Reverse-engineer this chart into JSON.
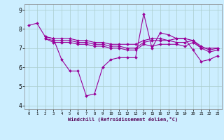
{
  "xlabel": "Windchill (Refroidissement éolien,°C)",
  "background_color": "#cceeff",
  "grid_color": "#aacccc",
  "line_color": "#990099",
  "xlim": [
    -0.5,
    23.5
  ],
  "ylim": [
    3.8,
    9.3
  ],
  "xticks": [
    0,
    1,
    2,
    3,
    4,
    5,
    6,
    7,
    8,
    9,
    10,
    11,
    12,
    13,
    14,
    15,
    16,
    17,
    18,
    19,
    20,
    21,
    22,
    23
  ],
  "yticks": [
    4,
    5,
    6,
    7,
    8,
    9
  ],
  "series": [
    {
      "x": [
        0,
        1,
        2,
        3,
        4,
        5,
        6,
        7,
        8,
        9,
        10,
        11,
        12,
        13,
        14,
        15,
        16,
        17,
        18,
        19,
        20,
        21,
        22,
        23
      ],
      "y": [
        8.2,
        8.3,
        7.6,
        7.5,
        6.4,
        5.8,
        5.8,
        4.5,
        4.6,
        6.0,
        6.4,
        6.5,
        6.5,
        6.5,
        8.8,
        7.0,
        7.8,
        7.7,
        7.5,
        7.5,
        6.9,
        6.3,
        6.4,
        6.6
      ]
    },
    {
      "x": [
        2,
        3,
        4,
        5,
        6,
        7,
        8,
        9,
        10,
        11,
        12,
        13,
        14,
        15,
        16,
        17,
        18,
        19,
        20,
        21,
        22,
        23
      ],
      "y": [
        7.6,
        7.5,
        7.5,
        7.5,
        7.4,
        7.4,
        7.3,
        7.3,
        7.2,
        7.2,
        7.2,
        7.2,
        7.4,
        7.5,
        7.5,
        7.4,
        7.5,
        7.5,
        7.4,
        7.0,
        7.0,
        7.0
      ]
    },
    {
      "x": [
        2,
        3,
        4,
        5,
        6,
        7,
        8,
        9,
        10,
        11,
        12,
        13,
        14,
        15,
        16,
        17,
        18,
        19,
        20,
        21,
        22,
        23
      ],
      "y": [
        7.5,
        7.4,
        7.4,
        7.4,
        7.3,
        7.3,
        7.2,
        7.2,
        7.1,
        7.1,
        7.0,
        7.0,
        7.3,
        7.4,
        7.4,
        7.4,
        7.3,
        7.3,
        7.4,
        7.1,
        6.9,
        7.0
      ]
    },
    {
      "x": [
        2,
        3,
        4,
        5,
        6,
        7,
        8,
        9,
        10,
        11,
        12,
        13,
        14,
        15,
        16,
        17,
        18,
        19,
        20,
        21,
        22,
        23
      ],
      "y": [
        7.5,
        7.3,
        7.3,
        7.3,
        7.2,
        7.2,
        7.1,
        7.1,
        7.0,
        7.0,
        6.9,
        6.9,
        7.2,
        7.1,
        7.2,
        7.2,
        7.2,
        7.1,
        7.3,
        7.0,
        6.8,
        6.9
      ]
    }
  ]
}
